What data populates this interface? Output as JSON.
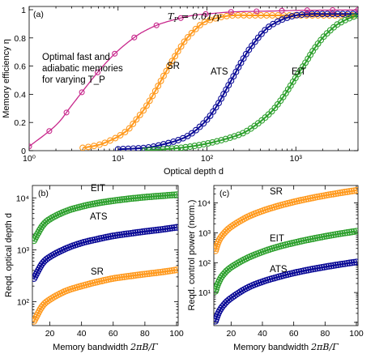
{
  "colors": {
    "SR": "#ff9a1f",
    "ATS": "#0a0a96",
    "EIT": "#2ea02e",
    "optimal": "#c8288c"
  },
  "chart_data": [
    {
      "panel": "(a)",
      "type": "line",
      "xscale": "log",
      "xlim": [
        1,
        5000
      ],
      "ylim": [
        0,
        1
      ],
      "xlabel": "Optical depth d",
      "ylabel": "Memory efficiency η",
      "xticks": [
        "10⁰",
        "10¹",
        "10²",
        "10³"
      ],
      "yticks": [
        "0",
        "0.2",
        "0.4",
        "0.6",
        "0.8",
        "1"
      ],
      "top_annotation": "T_P = 0.01/γ",
      "note_lines": [
        "Optimal fast and",
        "adiabatic memories",
        "for varying T_P"
      ],
      "series": [
        {
          "name": "SR",
          "color_key": "SR",
          "x": [
            4,
            6,
            8,
            10,
            13,
            16,
            20,
            25,
            30,
            40,
            50,
            60,
            80,
            100,
            150,
            200,
            300,
            500,
            1000,
            2000,
            5000
          ],
          "y": [
            0.02,
            0.04,
            0.07,
            0.1,
            0.15,
            0.22,
            0.3,
            0.4,
            0.49,
            0.63,
            0.73,
            0.8,
            0.88,
            0.92,
            0.95,
            0.96,
            0.96,
            0.96,
            0.96,
            0.96,
            0.96
          ]
        },
        {
          "name": "ATS",
          "color_key": "ATS",
          "x": [
            10,
            20,
            30,
            50,
            70,
            100,
            130,
            160,
            200,
            250,
            300,
            400,
            500,
            700,
            1000,
            1500,
            2000,
            3000,
            5000
          ],
          "y": [
            0.01,
            0.02,
            0.04,
            0.08,
            0.13,
            0.22,
            0.32,
            0.42,
            0.53,
            0.64,
            0.72,
            0.82,
            0.88,
            0.93,
            0.96,
            0.97,
            0.97,
            0.97,
            0.97
          ]
        },
        {
          "name": "EIT",
          "color_key": "EIT",
          "x": [
            20,
            50,
            100,
            200,
            300,
            500,
            700,
            1000,
            1300,
            1600,
            2000,
            2500,
            3000,
            4000,
            5000
          ],
          "y": [
            0.0,
            0.02,
            0.05,
            0.1,
            0.15,
            0.26,
            0.37,
            0.52,
            0.63,
            0.72,
            0.8,
            0.86,
            0.9,
            0.94,
            0.96
          ]
        },
        {
          "name": "",
          "color_key": "optimal",
          "x": [
            1,
            2,
            3,
            5,
            7,
            10,
            15,
            20,
            30,
            50,
            70,
            100,
            200,
            500,
            1000,
            2000,
            5000
          ],
          "y": [
            0.03,
            0.18,
            0.32,
            0.5,
            0.61,
            0.71,
            0.8,
            0.85,
            0.9,
            0.94,
            0.96,
            0.97,
            0.985,
            0.99,
            0.995,
            0.997,
            0.998
          ]
        }
      ]
    },
    {
      "panel": "(b)",
      "type": "line",
      "yscale": "log",
      "xlim": [
        10,
        100
      ],
      "ylim": [
        40,
        15000
      ],
      "xlabel": "Memory bandwidth 2πB/Γ",
      "ylabel": "Reqd. optical depth d",
      "xticks": [
        "20",
        "40",
        "60",
        "80",
        "100"
      ],
      "yticks": [
        "10²",
        "10³",
        "10⁴"
      ],
      "series": [
        {
          "name": "EIT",
          "color_key": "EIT",
          "x": [
            10,
            15,
            20,
            30,
            40,
            50,
            60,
            70,
            80,
            90,
            100
          ],
          "y": [
            1500,
            2800,
            3900,
            5500,
            6800,
            7900,
            8800,
            9600,
            10300,
            10900,
            11500
          ]
        },
        {
          "name": "ATS",
          "color_key": "ATS",
          "x": [
            10,
            15,
            20,
            30,
            40,
            50,
            60,
            70,
            80,
            90,
            100
          ],
          "y": [
            280,
            530,
            730,
            1050,
            1350,
            1600,
            1850,
            2050,
            2250,
            2450,
            2700
          ]
        },
        {
          "name": "SR",
          "color_key": "SR",
          "x": [
            10,
            15,
            20,
            30,
            40,
            50,
            60,
            70,
            80,
            90,
            100
          ],
          "y": [
            42,
            80,
            110,
            160,
            200,
            240,
            280,
            310,
            340,
            370,
            410
          ]
        }
      ]
    },
    {
      "panel": "(c)",
      "type": "line",
      "yscale": "log",
      "xlim": [
        10,
        100
      ],
      "ylim": [
        1,
        30000
      ],
      "xlabel": "Memory bandwidth 2πB/Γ",
      "ylabel": "Reqd. control power (norm.)",
      "xticks": [
        "20",
        "40",
        "60",
        "80",
        "100"
      ],
      "yticks": [
        "10¹",
        "10²",
        "10³",
        "10⁴"
      ],
      "series": [
        {
          "name": "SR",
          "color_key": "SR",
          "x": [
            10,
            12,
            15,
            20,
            30,
            40,
            50,
            60,
            70,
            80,
            90,
            100
          ],
          "y": [
            250,
            520,
            900,
            1600,
            3300,
            5400,
            7900,
            10800,
            14100,
            17800,
            21900,
            26400
          ]
        },
        {
          "name": "EIT",
          "color_key": "EIT",
          "x": [
            10,
            12,
            15,
            20,
            30,
            40,
            50,
            60,
            70,
            80,
            90,
            100
          ],
          "y": [
            11,
            22,
            40,
            70,
            140,
            230,
            340,
            460,
            600,
            760,
            940,
            1130
          ]
        },
        {
          "name": "ATS",
          "color_key": "ATS",
          "x": [
            10,
            12,
            15,
            20,
            30,
            40,
            50,
            60,
            70,
            80,
            90,
            100
          ],
          "y": [
            1.1,
            2.1,
            3.7,
            6.5,
            14,
            23,
            33,
            45,
            58,
            72,
            88,
            105
          ]
        }
      ]
    }
  ]
}
